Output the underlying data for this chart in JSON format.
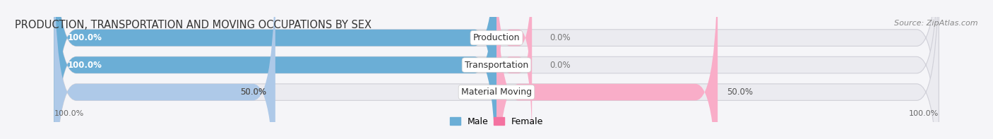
{
  "title": "PRODUCTION, TRANSPORTATION AND MOVING OCCUPATIONS BY SEX",
  "source": "Source: ZipAtlas.com",
  "categories": [
    "Production",
    "Transportation",
    "Material Moving"
  ],
  "male_values": [
    100.0,
    100.0,
    50.0
  ],
  "female_values": [
    0.0,
    0.0,
    50.0
  ],
  "male_full_color": "#6baed6",
  "male_half_color": "#aec9e8",
  "female_full_color": "#f472a0",
  "female_half_color": "#f9adc8",
  "female_small_color": "#f9adc8",
  "bar_bg_color": "#ebebf0",
  "bg_color": "#f5f5f8",
  "title_fontsize": 10.5,
  "label_fontsize": 9,
  "pct_fontsize": 8.5,
  "source_fontsize": 8,
  "legend_fontsize": 9,
  "axis_label_fontsize": 8,
  "x_left_label": "100.0%",
  "x_right_label": "100.0%"
}
